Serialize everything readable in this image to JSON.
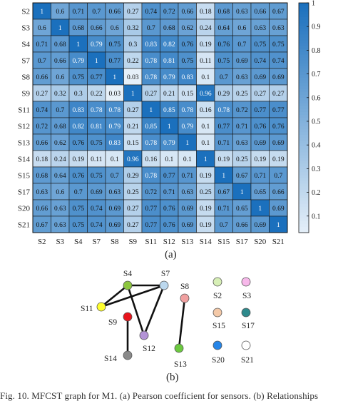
{
  "chart_data": [
    {
      "type": "heatmap",
      "labels": [
        "S2",
        "S3",
        "S4",
        "S7",
        "S8",
        "S9",
        "S11",
        "S12",
        "S13",
        "S14",
        "S15",
        "S17",
        "S20",
        "S21"
      ],
      "matrix": [
        [
          1,
          0.6,
          0.71,
          0.7,
          0.66,
          0.27,
          0.74,
          0.72,
          0.66,
          0.18,
          0.68,
          0.63,
          0.66,
          0.67
        ],
        [
          0.6,
          1,
          0.68,
          0.66,
          0.6,
          0.32,
          0.7,
          0.68,
          0.62,
          0.24,
          0.64,
          0.6,
          0.63,
          0.63
        ],
        [
          0.71,
          0.68,
          1,
          0.79,
          0.75,
          0.3,
          0.83,
          0.82,
          0.76,
          0.19,
          0.76,
          0.7,
          0.75,
          0.75
        ],
        [
          0.7,
          0.66,
          0.79,
          1,
          0.77,
          0.22,
          0.78,
          0.81,
          0.75,
          0.11,
          0.75,
          0.69,
          0.74,
          0.74
        ],
        [
          0.66,
          0.6,
          0.75,
          0.77,
          1,
          0.03,
          0.78,
          0.79,
          0.83,
          0.1,
          0.7,
          0.63,
          0.69,
          0.69
        ],
        [
          0.27,
          0.32,
          0.3,
          0.22,
          0.03,
          1,
          0.27,
          0.21,
          0.15,
          0.96,
          0.29,
          0.25,
          0.27,
          0.27
        ],
        [
          0.74,
          0.7,
          0.83,
          0.78,
          0.78,
          0.27,
          1,
          0.85,
          0.78,
          0.16,
          0.78,
          0.72,
          0.77,
          0.77
        ],
        [
          0.72,
          0.68,
          0.82,
          0.81,
          0.79,
          0.21,
          0.85,
          1,
          0.79,
          0.1,
          0.77,
          0.71,
          0.76,
          0.76
        ],
        [
          0.66,
          0.62,
          0.76,
          0.75,
          0.83,
          0.15,
          0.78,
          0.79,
          1,
          0.1,
          0.71,
          0.63,
          0.69,
          0.69
        ],
        [
          0.18,
          0.24,
          0.19,
          0.11,
          0.1,
          0.96,
          0.16,
          0.1,
          0.1,
          1,
          0.19,
          0.25,
          0.19,
          0.19
        ],
        [
          0.68,
          0.64,
          0.76,
          0.75,
          0.7,
          0.29,
          0.78,
          0.77,
          0.71,
          0.19,
          1,
          0.67,
          0.71,
          0.7
        ],
        [
          0.63,
          0.6,
          0.7,
          0.69,
          0.63,
          0.25,
          0.72,
          0.71,
          0.63,
          0.25,
          0.67,
          1,
          0.65,
          0.66
        ],
        [
          0.66,
          0.63,
          0.75,
          0.74,
          0.69,
          0.27,
          0.77,
          0.76,
          0.69,
          0.19,
          0.71,
          0.65,
          1,
          0.69
        ],
        [
          0.67,
          0.63,
          0.75,
          0.74,
          0.69,
          0.27,
          0.77,
          0.76,
          0.69,
          0.19,
          0.7,
          0.66,
          0.69,
          1
        ]
      ],
      "colorbar": {
        "ticks": [
          "1",
          "0.9",
          "0.8",
          "0.7",
          "0.6",
          "0.5",
          "0.4",
          "0.3",
          "0.2",
          "0.1"
        ],
        "range": [
          0.03,
          1
        ]
      },
      "colors": {
        "low": "#e6f0f9",
        "high": "#1b70bd",
        "grid": "#1a1a1a"
      },
      "sub_label": "(a)"
    },
    {
      "type": "graph",
      "nodes": [
        {
          "id": "S4",
          "color": "#8cc63e"
        },
        {
          "id": "S7",
          "color": "#bcd8ee"
        },
        {
          "id": "S11",
          "color": "#ffff2e"
        },
        {
          "id": "S9",
          "color": "#e8141c"
        },
        {
          "id": "S12",
          "color": "#b393d6"
        },
        {
          "id": "S14",
          "color": "#8a8a8a"
        },
        {
          "id": "S8",
          "color": "#f0a0a0"
        },
        {
          "id": "S13",
          "color": "#6cc940"
        },
        {
          "id": "S2",
          "color": "#d7efb6"
        },
        {
          "id": "S3",
          "color": "#f7b8ea"
        },
        {
          "id": "S15",
          "color": "#f4c9a8"
        },
        {
          "id": "S17",
          "color": "#2e8a8c"
        },
        {
          "id": "S20",
          "color": "#2585e8"
        },
        {
          "id": "S21",
          "color": "#ffffff"
        }
      ],
      "edges": [
        [
          "S4",
          "S7"
        ],
        [
          "S4",
          "S11"
        ],
        [
          "S11",
          "S7"
        ],
        [
          "S4",
          "S12"
        ],
        [
          "S7",
          "S12"
        ],
        [
          "S9",
          "S14"
        ],
        [
          "S8",
          "S13"
        ]
      ],
      "sub_label": "(b)"
    }
  ],
  "caption": "Fig. 10.   MFCST graph for M1. (a) Pearson coefficient for sensors. (b) Relationships"
}
